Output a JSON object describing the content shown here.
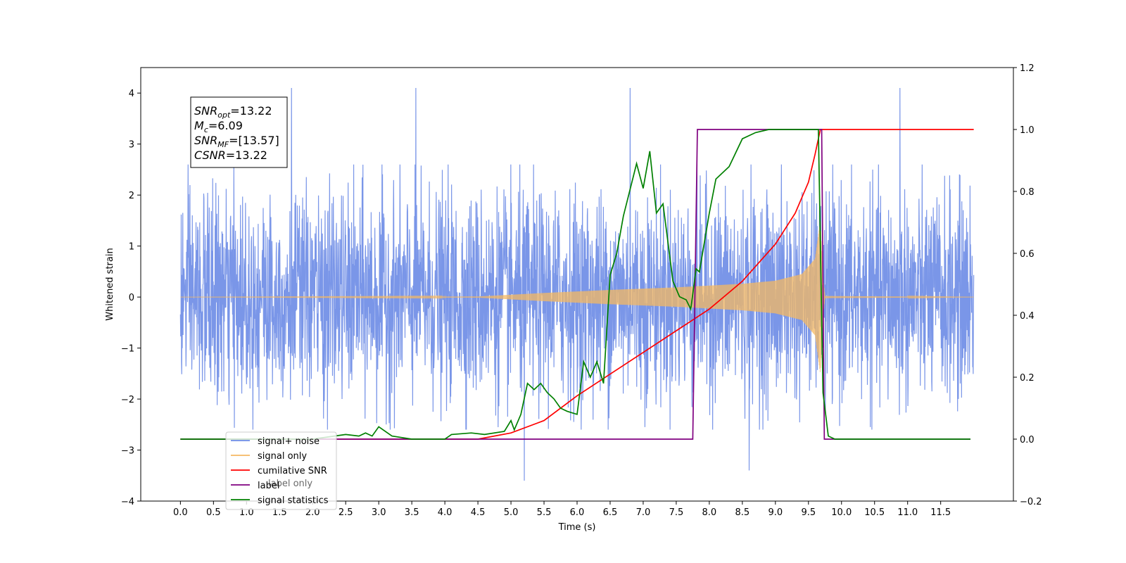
{
  "chart_data": {
    "type": "line",
    "title": "",
    "xlabel": "Time (s)",
    "ylabel": "Whitened strain",
    "y2label": "",
    "xlim": [
      -0.6,
      12.6
    ],
    "ylim": [
      -4,
      4.5
    ],
    "y2lim": [
      -0.2,
      1.2
    ],
    "x_ticks": [
      0.0,
      0.5,
      1.0,
      1.5,
      2.0,
      2.5,
      3.0,
      3.5,
      4.0,
      4.5,
      5.0,
      5.5,
      6.0,
      6.5,
      7.0,
      7.5,
      8.0,
      8.5,
      9.0,
      9.5,
      10.0,
      10.5,
      11.0,
      11.5
    ],
    "x_tick_labels": [
      "0.0",
      "0.5",
      "1.0",
      "1.5",
      "2.0",
      "2.5",
      "3.0",
      "3.5",
      "4.0",
      "4.5",
      "5.0",
      "5.5",
      "6.0",
      "6.5",
      "7.0",
      "7.5",
      "8.0",
      "8.5",
      "9.0",
      "9.5",
      "10.0",
      "10.5",
      "11.0",
      "11.5"
    ],
    "y_ticks": [
      -4,
      -3,
      -2,
      -1,
      0,
      1,
      2,
      3,
      4
    ],
    "y_tick_labels": [
      "−4",
      "−3",
      "−2",
      "−1",
      "0",
      "1",
      "2",
      "3",
      "4"
    ],
    "y2_ticks": [
      -0.2,
      0.0,
      0.2,
      0.4,
      0.6,
      0.8,
      1.0,
      1.2
    ],
    "y2_tick_labels": [
      "−0.2",
      "0.0",
      "0.2",
      "0.4",
      "0.6",
      "0.8",
      "1.0",
      "1.2"
    ],
    "grid": false,
    "legend_position": "bottom-left",
    "legend": [
      {
        "label": "signal+ noise",
        "color": "#6b8be6"
      },
      {
        "label": "signal only",
        "color": "#f5b862"
      },
      {
        "label": "cumilative SNR",
        "color": "#ff0000"
      },
      {
        "label": "label",
        "color": "#800080"
      },
      {
        "label": "signal statistics",
        "color": "#008000"
      }
    ],
    "legend_hidden_label": "label only",
    "annotation": {
      "lines": [
        {
          "base": "SNR",
          "sub": "opt",
          "rest": "=13.22"
        },
        {
          "base": "M",
          "sub": "c",
          "rest": "=6.09"
        },
        {
          "base": "SNR",
          "sub": "MF",
          "rest": "=[13.57]"
        },
        {
          "base": "CSNR",
          "sub": "",
          "rest": "=13.22"
        }
      ]
    },
    "series": [
      {
        "name": "signal+ noise",
        "axis": "left",
        "color": "#6b8be6",
        "description_x_range": [
          0.0,
          12.0
        ],
        "typical_amplitude": 1.0,
        "peak_values": [
          4.1,
          4.1,
          4.1,
          -3.6,
          -3.4,
          4.1
        ]
      },
      {
        "name": "signal only",
        "axis": "left",
        "color": "#f5b862",
        "envelope": {
          "x": [
            0.0,
            4.5,
            5.5,
            6.5,
            7.5,
            8.5,
            9.0,
            9.4,
            9.6,
            9.68,
            9.72,
            9.75,
            12.0
          ],
          "amp": [
            0.0,
            0.01,
            0.08,
            0.14,
            0.19,
            0.26,
            0.32,
            0.45,
            0.75,
            1.5,
            0.4,
            0.02,
            0.0
          ]
        }
      },
      {
        "name": "cumilative SNR",
        "axis": "right",
        "color": "#ff0000",
        "x": [
          0.0,
          4.5,
          5.0,
          5.5,
          6.0,
          6.5,
          7.0,
          7.5,
          8.0,
          8.5,
          9.0,
          9.3,
          9.5,
          9.6,
          9.68,
          9.7,
          12.0
        ],
        "y": [
          0.0,
          0.0,
          0.02,
          0.06,
          0.14,
          0.21,
          0.28,
          0.35,
          0.42,
          0.51,
          0.63,
          0.73,
          0.83,
          0.92,
          1.0,
          1.0,
          1.0
        ]
      },
      {
        "name": "label",
        "axis": "right",
        "color": "#800080",
        "x": [
          0.0,
          7.75,
          7.82,
          9.7,
          9.74,
          11.95
        ],
        "y": [
          0.0,
          0.0,
          1.0,
          1.0,
          0.0,
          0.0
        ]
      },
      {
        "name": "signal statistics",
        "axis": "right",
        "color": "#008000",
        "x": [
          0.0,
          2.0,
          2.5,
          2.7,
          2.8,
          2.9,
          3.0,
          3.2,
          3.5,
          4.0,
          4.1,
          4.4,
          4.6,
          4.9,
          5.0,
          5.05,
          5.15,
          5.25,
          5.35,
          5.45,
          5.55,
          5.65,
          5.75,
          5.85,
          6.0,
          6.1,
          6.2,
          6.3,
          6.4,
          6.5,
          6.6,
          6.7,
          6.9,
          7.0,
          7.1,
          7.2,
          7.3,
          7.45,
          7.55,
          7.65,
          7.72,
          7.8,
          7.85,
          8.0,
          8.1,
          8.3,
          8.5,
          8.7,
          8.9,
          9.2,
          9.5,
          9.65,
          9.72,
          9.8,
          9.9,
          11.95
        ],
        "y": [
          0.0,
          0.0,
          0.015,
          0.01,
          0.02,
          0.01,
          0.04,
          0.01,
          0.0,
          0.0,
          0.015,
          0.02,
          0.015,
          0.025,
          0.06,
          0.03,
          0.08,
          0.18,
          0.16,
          0.18,
          0.15,
          0.13,
          0.1,
          0.09,
          0.08,
          0.25,
          0.2,
          0.25,
          0.18,
          0.53,
          0.6,
          0.72,
          0.89,
          0.81,
          0.93,
          0.73,
          0.76,
          0.51,
          0.46,
          0.45,
          0.42,
          0.55,
          0.54,
          0.73,
          0.84,
          0.88,
          0.97,
          0.99,
          1.0,
          1.0,
          1.0,
          1.0,
          0.15,
          0.01,
          0.0,
          0.0
        ]
      }
    ]
  }
}
